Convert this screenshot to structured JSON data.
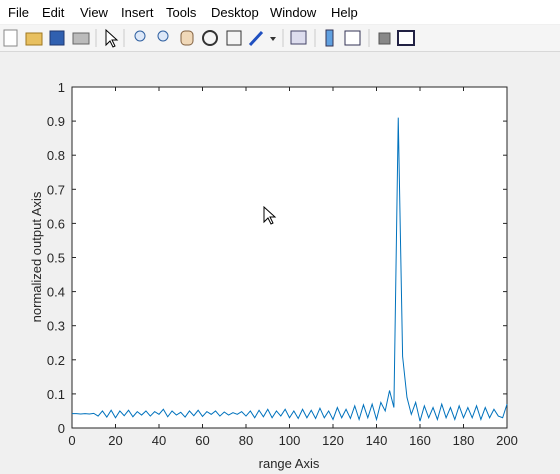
{
  "menu": [
    "File",
    "Edit",
    "View",
    "Insert",
    "Tools",
    "Desktop",
    "Window",
    "Help"
  ],
  "chart_data": {
    "type": "line",
    "xlabel": "range Axis",
    "ylabel": "normalized output Axis",
    "x": [
      0,
      2,
      4,
      6,
      8,
      10,
      12,
      14,
      16,
      18,
      20,
      22,
      24,
      26,
      28,
      30,
      32,
      34,
      36,
      38,
      40,
      42,
      44,
      46,
      48,
      50,
      52,
      54,
      56,
      58,
      60,
      62,
      64,
      66,
      68,
      70,
      72,
      74,
      76,
      78,
      80,
      82,
      84,
      86,
      88,
      90,
      92,
      94,
      96,
      98,
      100,
      102,
      104,
      106,
      108,
      110,
      112,
      114,
      116,
      118,
      120,
      122,
      124,
      126,
      128,
      130,
      132,
      134,
      136,
      138,
      140,
      142,
      144,
      146,
      148,
      150,
      152,
      154,
      156,
      158,
      160,
      162,
      164,
      166,
      168,
      170,
      172,
      174,
      176,
      178,
      180,
      182,
      184,
      186,
      188,
      190,
      192,
      194,
      196,
      198,
      200
    ],
    "series": [
      {
        "color": "#0072bd",
        "values": [
          0.042,
          0.042,
          0.041,
          0.042,
          0.041,
          0.043,
          0.035,
          0.05,
          0.032,
          0.052,
          0.03,
          0.05,
          0.036,
          0.052,
          0.033,
          0.048,
          0.038,
          0.05,
          0.035,
          0.048,
          0.04,
          0.055,
          0.033,
          0.05,
          0.038,
          0.046,
          0.032,
          0.05,
          0.036,
          0.052,
          0.034,
          0.048,
          0.04,
          0.05,
          0.035,
          0.047,
          0.038,
          0.045,
          0.04,
          0.048,
          0.035,
          0.05,
          0.03,
          0.052,
          0.033,
          0.055,
          0.03,
          0.05,
          0.035,
          0.055,
          0.03,
          0.05,
          0.028,
          0.055,
          0.03,
          0.052,
          0.028,
          0.058,
          0.03,
          0.05,
          0.025,
          0.06,
          0.03,
          0.055,
          0.028,
          0.065,
          0.025,
          0.068,
          0.03,
          0.07,
          0.025,
          0.075,
          0.05,
          0.11,
          0.06,
          0.91,
          0.21,
          0.09,
          0.04,
          0.075,
          0.02,
          0.065,
          0.03,
          0.06,
          0.025,
          0.07,
          0.03,
          0.06,
          0.025,
          0.065,
          0.03,
          0.06,
          0.03,
          0.065,
          0.025,
          0.06,
          0.03,
          0.055,
          0.035,
          0.03,
          0.07
        ]
      }
    ],
    "xlim": [
      0,
      200
    ],
    "xticks": [
      0,
      20,
      40,
      60,
      80,
      100,
      120,
      140,
      160,
      180,
      200
    ],
    "ylim": [
      0,
      1
    ],
    "yticks": [
      0,
      0.1,
      0.2,
      0.3,
      0.4,
      0.5,
      0.6,
      0.7,
      0.8,
      0.9,
      1
    ]
  }
}
